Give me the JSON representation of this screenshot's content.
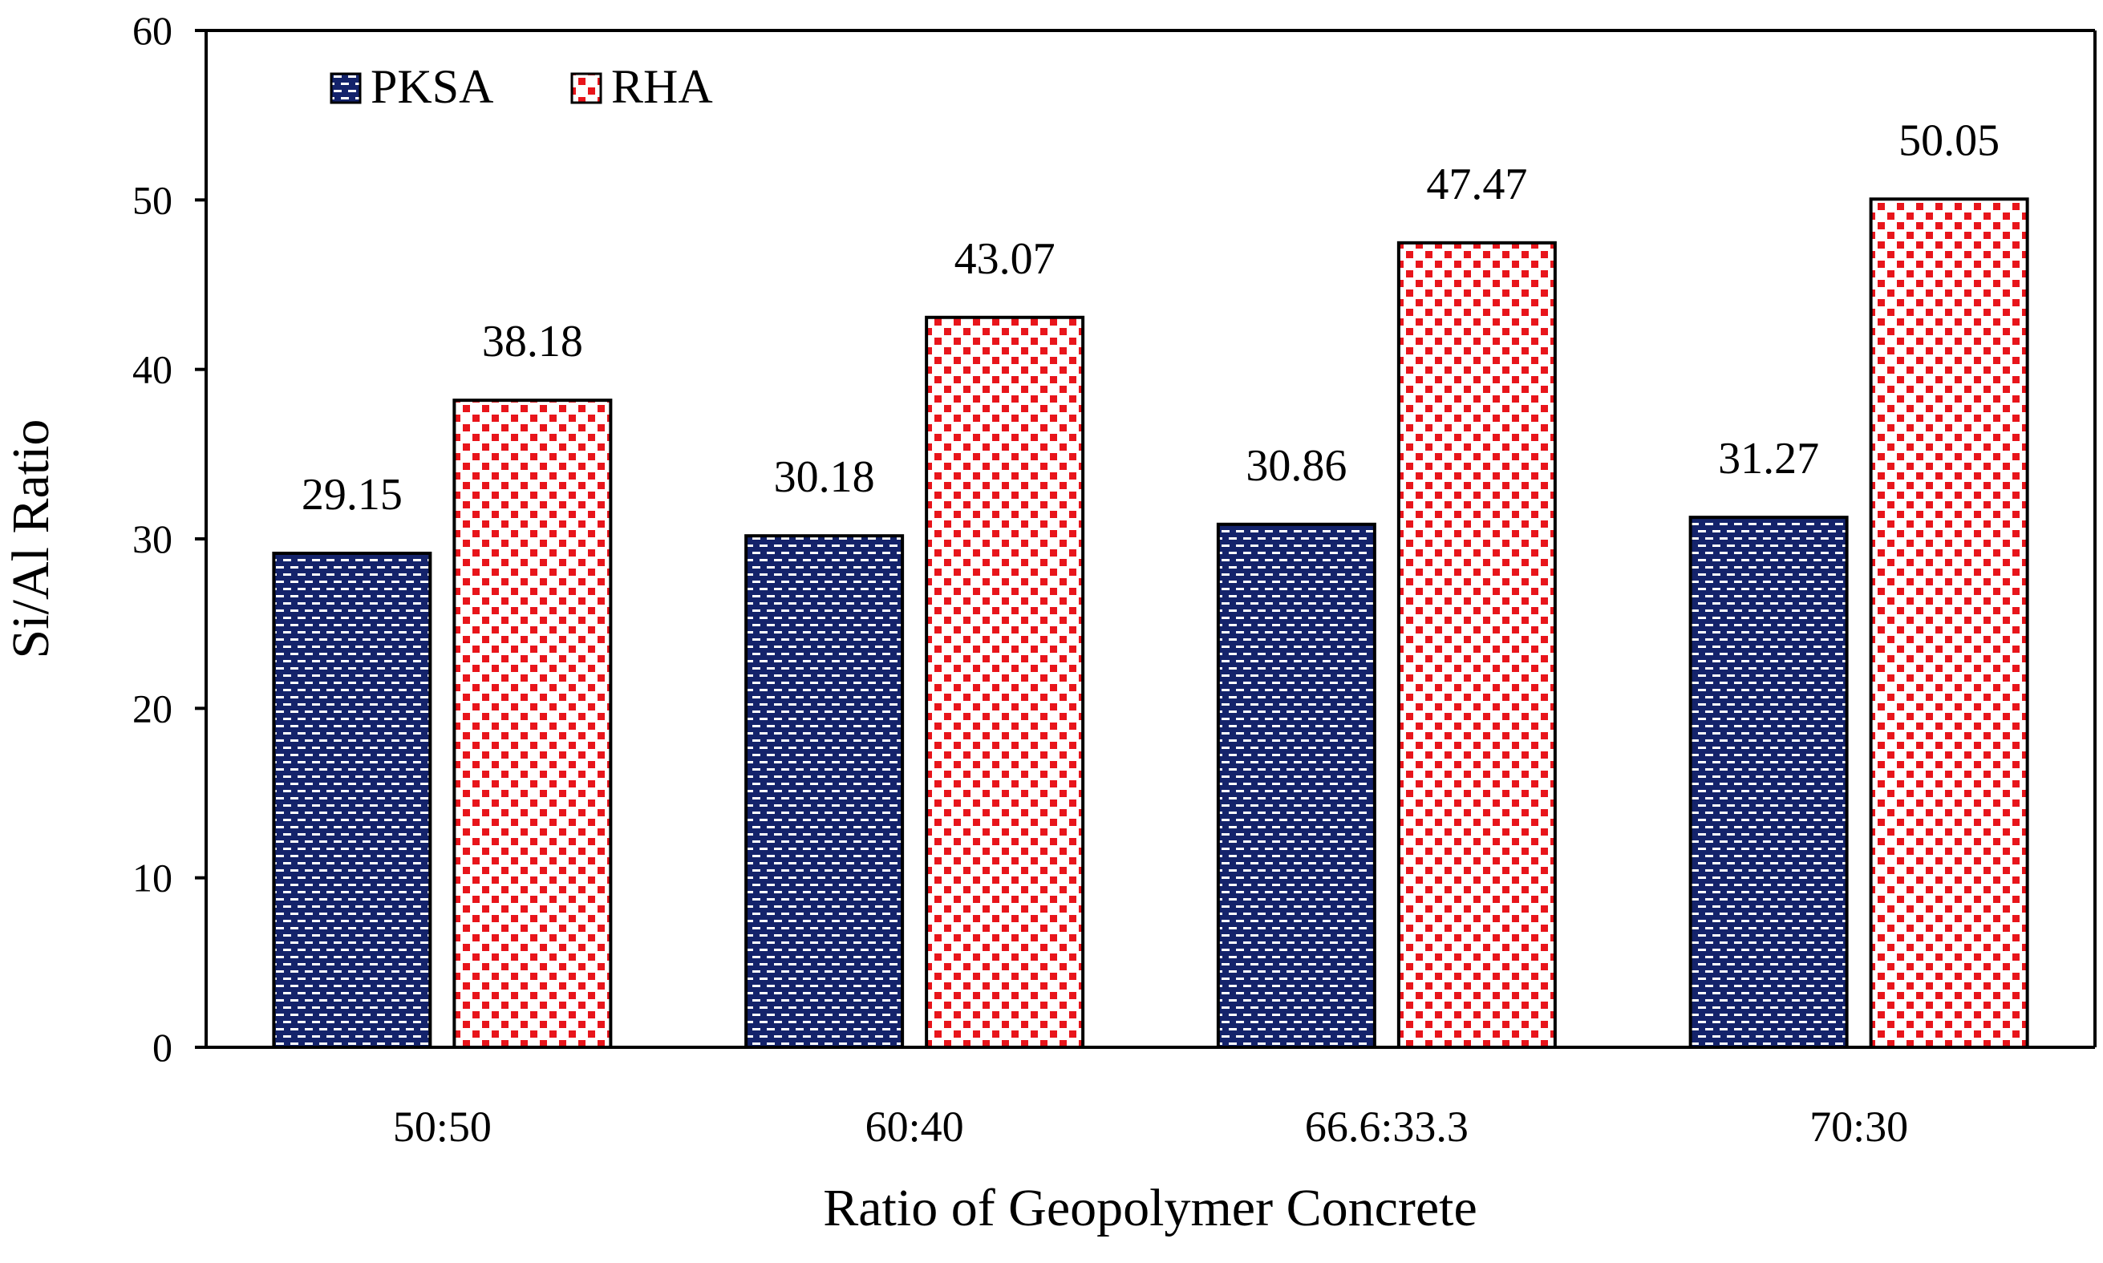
{
  "chart_data": {
    "type": "bar",
    "title": "",
    "xlabel": "Ratio of Geopolymer Concrete",
    "ylabel": "Si/Al Ratio",
    "categories": [
      "50:50",
      "60:40",
      "66.6:33.3",
      "70:30"
    ],
    "series": [
      {
        "name": "PKSA",
        "values": [
          29.15,
          30.18,
          30.86,
          31.27
        ],
        "labels": [
          "29.15",
          "30.18",
          "30.86",
          "31.27"
        ],
        "color": "#14236B",
        "pattern": "white-dashes"
      },
      {
        "name": "RHA",
        "values": [
          38.18,
          43.07,
          47.47,
          50.05
        ],
        "labels": [
          "38.18",
          "43.07",
          "47.47",
          "50.05"
        ],
        "color": "#E8151B",
        "pattern": "red-checker"
      }
    ],
    "ylim": [
      0,
      60
    ],
    "yticks": [
      0,
      10,
      20,
      30,
      40,
      50,
      60
    ],
    "grid": false,
    "legend": "top-left"
  }
}
